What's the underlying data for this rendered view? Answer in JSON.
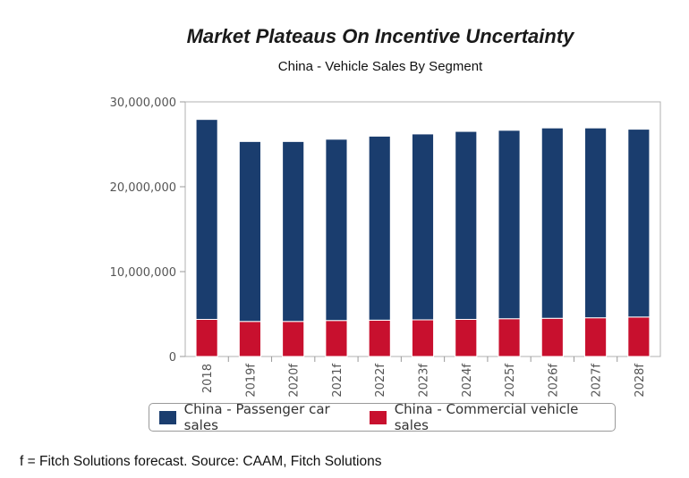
{
  "chart_data": {
    "type": "bar",
    "stacked": true,
    "title": "Market Plateaus On Incentive Uncertainty",
    "subtitle": "China - Vehicle Sales By Segment",
    "categories": [
      "2018",
      "2019f",
      "2020f",
      "2021f",
      "2022f",
      "2023f",
      "2024f",
      "2025f",
      "2026f",
      "2027f",
      "2028f"
    ],
    "series": [
      {
        "name": "China - Commercial vehicle sales",
        "color": "#c8102e",
        "values": [
          4370000,
          4130000,
          4130000,
          4240000,
          4280000,
          4320000,
          4370000,
          4450000,
          4500000,
          4560000,
          4650000
        ]
      },
      {
        "name": "China - Passenger car sales",
        "color": "#1a3d6e",
        "values": [
          23560000,
          21200000,
          21200000,
          21360000,
          21680000,
          21900000,
          22150000,
          22200000,
          22430000,
          22370000,
          22130000
        ]
      }
    ],
    "legend_order": [
      1,
      0
    ],
    "ylim": [
      0,
      30000000
    ],
    "yticks": [
      0,
      10000000,
      20000000,
      30000000
    ],
    "ytick_labels": [
      "0",
      "10,000,000",
      "20,000,000",
      "30,000,000"
    ],
    "xlabel": "",
    "ylabel": "",
    "legend_position": "bottom"
  },
  "footer": "f = Fitch Solutions forecast. Source: CAAM, Fitch Solutions"
}
